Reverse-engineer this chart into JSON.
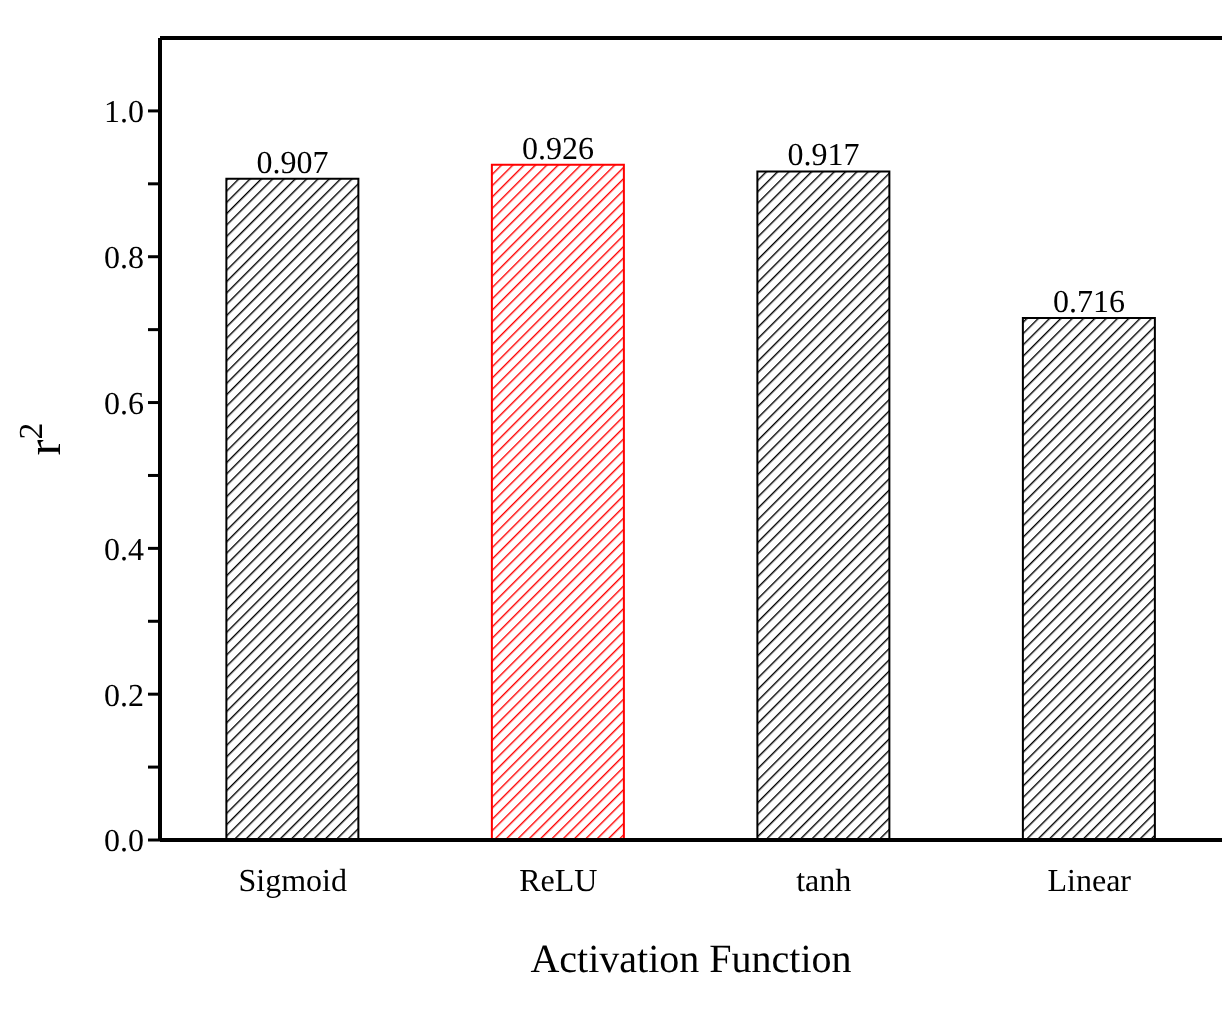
{
  "chart_data": {
    "type": "bar",
    "xlabel": "Activation Function",
    "ylabel": "r$^{2}$",
    "categories": [
      "Sigmoid",
      "ReLU",
      "tanh",
      "Linear"
    ],
    "values": [
      0.907,
      0.926,
      0.917,
      0.716
    ],
    "colors": [
      "#000000",
      "#ff0000",
      "#000000",
      "#000000"
    ],
    "data_labels": true,
    "grid": false,
    "legend": false,
    "ylim": [
      0,
      1.1
    ],
    "yticks": [
      {
        "value": 0,
        "label": "0.0"
      },
      {
        "value": 0.1,
        "label": null
      },
      {
        "value": 0.2,
        "label": "0.2"
      },
      {
        "value": 0.3,
        "label": null
      },
      {
        "value": 0.4,
        "label": "0.4"
      },
      {
        "value": 0.5,
        "label": null
      },
      {
        "value": 0.6,
        "label": "0.6"
      },
      {
        "value": 0.7,
        "label": null
      },
      {
        "value": 0.8,
        "label": "0.8"
      },
      {
        "value": 0.9,
        "label": null
      },
      {
        "value": 1.0,
        "label": "1.0"
      }
    ]
  }
}
